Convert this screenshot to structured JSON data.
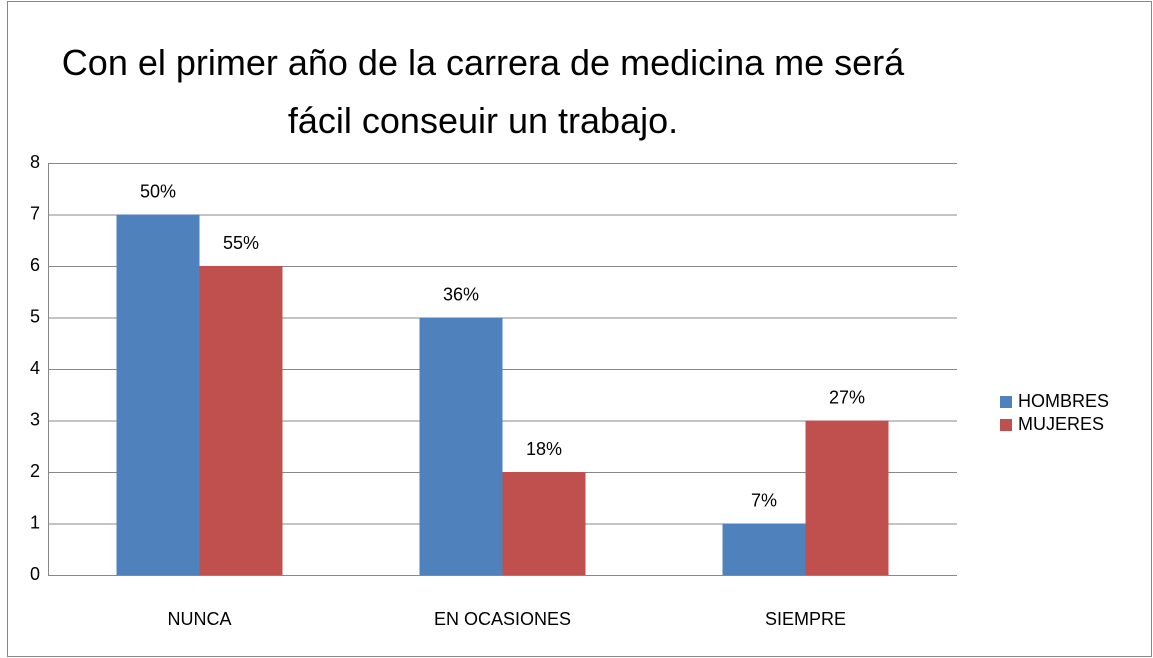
{
  "chart_data": {
    "type": "bar",
    "title": "Con el primer año de la carrera de medicina me será fácil conseuir un trabajo.",
    "categories": [
      "NUNCA",
      "EN OCASIONES",
      "SIEMPRE"
    ],
    "series": [
      {
        "name": "HOMBRES",
        "color": "#4f81bd",
        "values": [
          7,
          5,
          1
        ],
        "annotations": [
          "50%",
          "36%",
          "7%"
        ]
      },
      {
        "name": "MUJERES",
        "color": "#c0504d",
        "values": [
          6,
          2,
          3
        ],
        "annotations": [
          "55%",
          "18%",
          "27%"
        ]
      }
    ],
    "ylim": [
      0,
      8
    ],
    "yticks": [
      0,
      1,
      2,
      3,
      4,
      5,
      6,
      7,
      8
    ],
    "grid": true,
    "legend": "right"
  }
}
